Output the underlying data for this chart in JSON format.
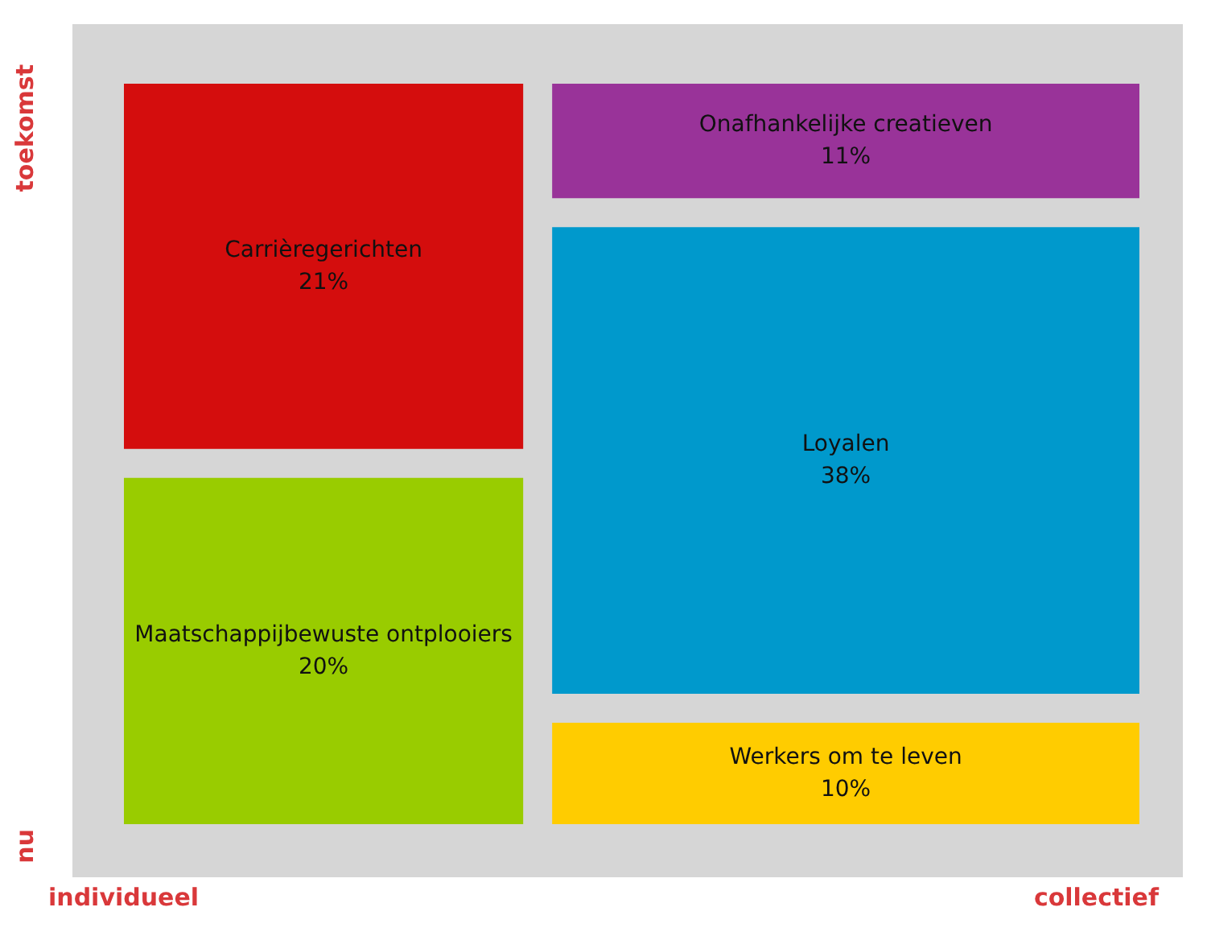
{
  "chart_data": {
    "type": "other",
    "categories": [
      "Carrièregerichten",
      "Maatschappijbewuste ontplooiers",
      "Onafhankelijke creatieven",
      "Loyalen",
      "Werkers om te leven"
    ],
    "values": [
      21,
      20,
      11,
      38,
      10
    ],
    "value_labels": [
      "21%",
      "20%",
      "11%",
      "38%",
      "10%"
    ],
    "colors": [
      "#d40d0d",
      "#99cc00",
      "#993399",
      "#0099cc",
      "#ffcc00"
    ],
    "annotations": [
      "toekomst",
      "nu",
      "individueel",
      "collectief"
    ]
  }
}
